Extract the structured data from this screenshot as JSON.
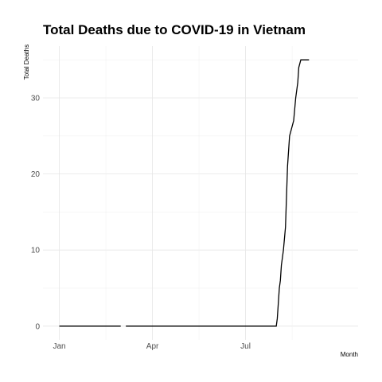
{
  "chart_data": {
    "type": "line",
    "title": "Total Deaths due to COVID-19 in Vietnam",
    "xlabel": "Month",
    "ylabel": "Total Deaths",
    "x_ticks": [
      {
        "date": "2020-01-01",
        "label": "Jan"
      },
      {
        "date": "2020-04-01",
        "label": "Apr"
      },
      {
        "date": "2020-07-01",
        "label": "Jul"
      }
    ],
    "y_ticks": [
      0,
      10,
      20,
      30
    ],
    "xlim": [
      "2019-12-16",
      "2020-10-19"
    ],
    "ylim": [
      -1.8,
      36.8
    ],
    "grid": true,
    "series": [
      {
        "segments": [
          [
            {
              "x": "2020-01-01",
              "y": 0
            },
            {
              "x": "2020-03-01",
              "y": 0
            }
          ],
          [
            {
              "x": "2020-03-06",
              "y": 0
            },
            {
              "x": "2020-07-31",
              "y": 0
            },
            {
              "x": "2020-08-01",
              "y": 1
            },
            {
              "x": "2020-08-02",
              "y": 3
            },
            {
              "x": "2020-08-03",
              "y": 5
            },
            {
              "x": "2020-08-04",
              "y": 6
            },
            {
              "x": "2020-08-05",
              "y": 8
            },
            {
              "x": "2020-08-07",
              "y": 10
            },
            {
              "x": "2020-08-09",
              "y": 13
            },
            {
              "x": "2020-08-10",
              "y": 17
            },
            {
              "x": "2020-08-11",
              "y": 21
            },
            {
              "x": "2020-08-13",
              "y": 25
            },
            {
              "x": "2020-08-17",
              "y": 27
            },
            {
              "x": "2020-08-19",
              "y": 30
            },
            {
              "x": "2020-08-21",
              "y": 32
            },
            {
              "x": "2020-08-22",
              "y": 34
            },
            {
              "x": "2020-08-24",
              "y": 35
            },
            {
              "x": "2020-09-01",
              "y": 35
            }
          ]
        ]
      }
    ]
  }
}
